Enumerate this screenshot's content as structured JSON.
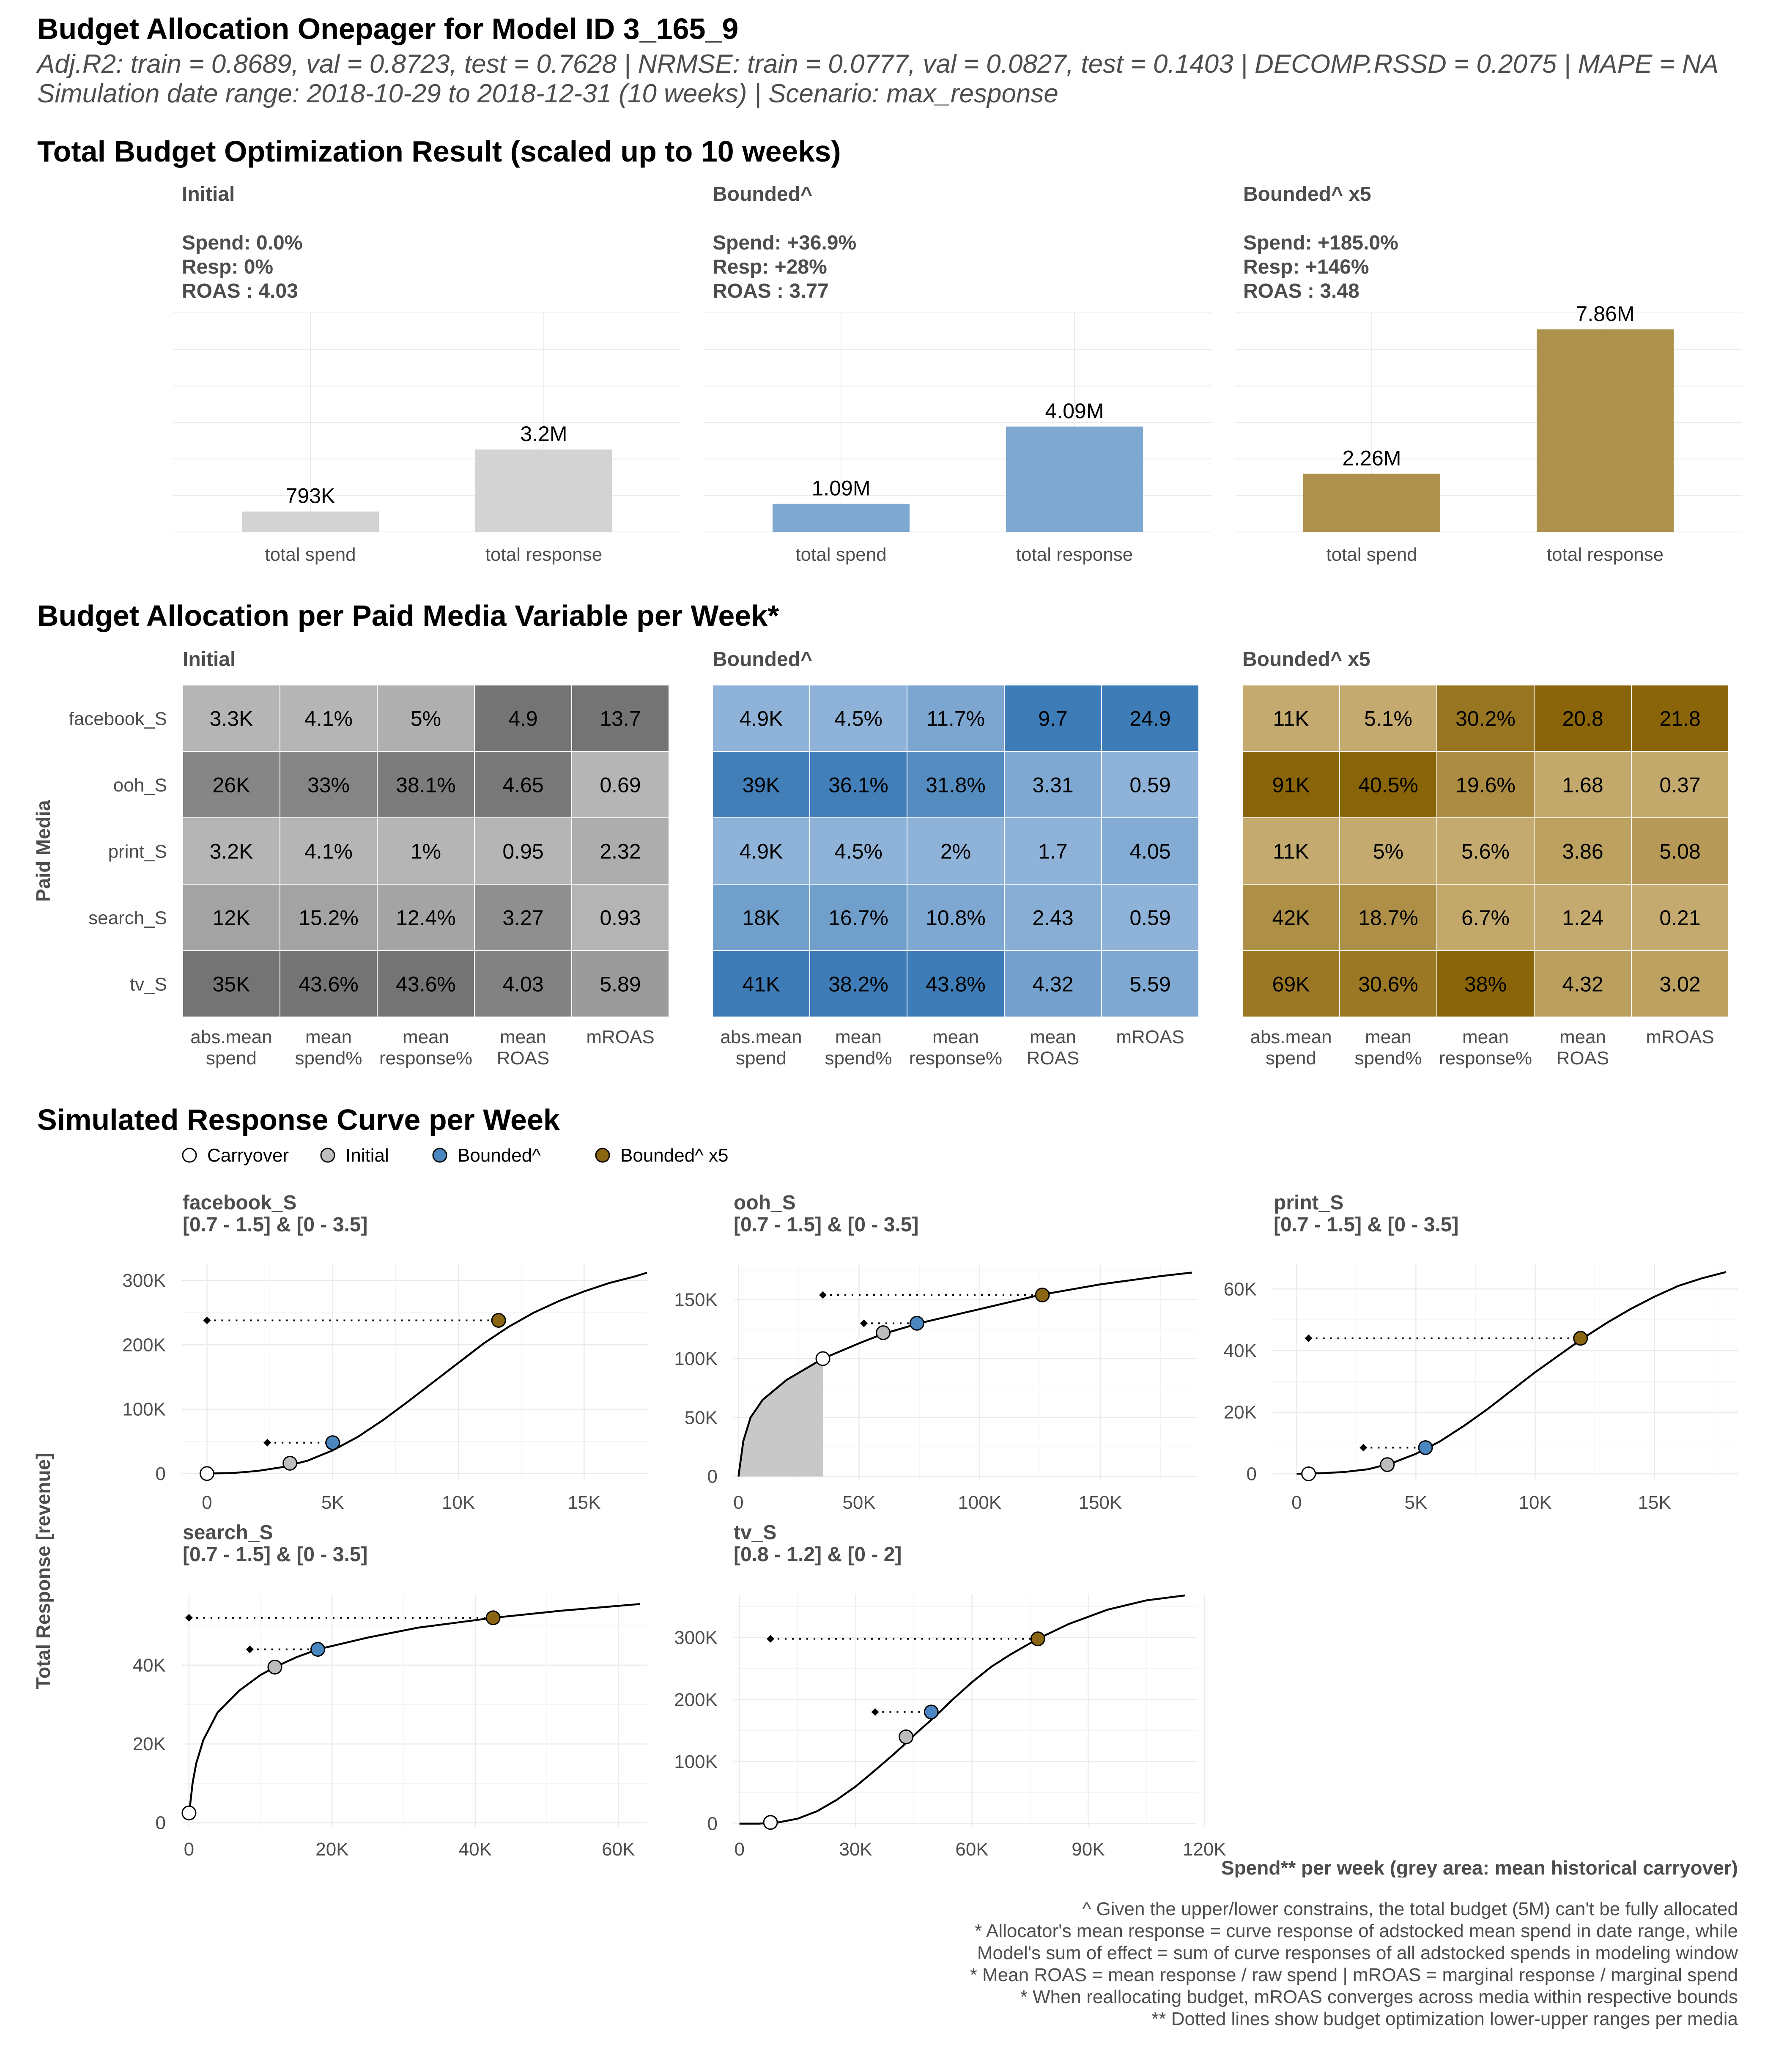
{
  "header": {
    "title": "Budget Allocation Onepager for Model ID 3_165_9",
    "metrics": "Adj.R2: train = 0.8689, val = 0.8723, test = 0.7628 | NRMSE: train = 0.0777, val = 0.0827, test = 0.1403 | DECOMP.RSSD = 0.2075 | MAPE = NA",
    "simulation": "Simulation date range: 2018-10-29 to 2018-12-31 (10 weeks) | Scenario: max_response"
  },
  "sections": {
    "total": "Total Budget Optimization Result (scaled up to 10 weeks)",
    "allocation": "Budget Allocation per Paid Media Variable per Week*",
    "curves": "Simulated Response Curve per Week"
  },
  "colors": {
    "initial": "#c9c9c9",
    "bounded": "#4a86bf",
    "bounded5": "#8a6512"
  },
  "chart_data": [
    {
      "type": "bar",
      "title": "Total Budget Optimization Result (scaled up to 10 weeks)",
      "categories": [
        "total spend",
        "total response"
      ],
      "panels": [
        {
          "name": "Initial",
          "stats": [
            "Spend: 0.0%",
            "Resp: 0%",
            "ROAS : 4.03"
          ],
          "values": [
            793000,
            3200000
          ],
          "labels": [
            "793K",
            "3.2M"
          ],
          "color": "#d3d3d3"
        },
        {
          "name": "Bounded^",
          "stats": [
            "Spend: +36.9%",
            "Resp: +28%",
            "ROAS : 3.77"
          ],
          "values": [
            1090000,
            4090000
          ],
          "labels": [
            "1.09M",
            "4.09M"
          ],
          "color": "#7ea8cf"
        },
        {
          "name": "Bounded^ x5",
          "stats": [
            "Spend: +185.0%",
            "Resp: +146%",
            "ROAS : 3.48"
          ],
          "values": [
            2260000,
            7860000
          ],
          "labels": [
            "2.26M",
            "7.86M"
          ],
          "color": "#ae914d"
        }
      ],
      "ylim": [
        0,
        8500000
      ]
    },
    {
      "type": "heatmap",
      "title": "Budget Allocation per Paid Media Variable per Week*",
      "ylabel": "Paid Media",
      "rows": [
        "facebook_S",
        "ooh_S",
        "print_S",
        "search_S",
        "tv_S"
      ],
      "columns": [
        "abs.mean\nspend",
        "mean\nspend%",
        "mean\nresponse%",
        "mean\nROAS",
        "mROAS"
      ],
      "panels": [
        {
          "name": "Initial",
          "values": [
            [
              "3.3K",
              "4.1%",
              "5%",
              "4.9",
              "13.7"
            ],
            [
              "26K",
              "33%",
              "38.1%",
              "4.65",
              "0.69"
            ],
            [
              "3.2K",
              "4.1%",
              "1%",
              "0.95",
              "2.32"
            ],
            [
              "12K",
              "15.2%",
              "12.4%",
              "3.27",
              "0.93"
            ],
            [
              "35K",
              "43.6%",
              "43.6%",
              "4.03",
              "5.89"
            ]
          ]
        },
        {
          "name": "Bounded^",
          "values": [
            [
              "4.9K",
              "4.5%",
              "11.7%",
              "9.7",
              "24.9"
            ],
            [
              "39K",
              "36.1%",
              "31.8%",
              "3.31",
              "0.59"
            ],
            [
              "4.9K",
              "4.5%",
              "2%",
              "1.7",
              "4.05"
            ],
            [
              "18K",
              "16.7%",
              "10.8%",
              "2.43",
              "0.59"
            ],
            [
              "41K",
              "38.2%",
              "43.8%",
              "4.32",
              "5.59"
            ]
          ]
        },
        {
          "name": "Bounded^ x5",
          "values": [
            [
              "11K",
              "5.1%",
              "30.2%",
              "20.8",
              "21.8"
            ],
            [
              "91K",
              "40.5%",
              "19.6%",
              "1.68",
              "0.37"
            ],
            [
              "11K",
              "5%",
              "5.6%",
              "3.86",
              "5.08"
            ],
            [
              "42K",
              "18.7%",
              "6.7%",
              "1.24",
              "0.21"
            ],
            [
              "69K",
              "30.6%",
              "38%",
              "4.32",
              "3.02"
            ]
          ]
        }
      ]
    },
    {
      "type": "line",
      "title": "Simulated Response Curve per Week",
      "legend": [
        "Carryover",
        "Initial",
        "Bounded^",
        "Bounded^ x5"
      ],
      "legend_placement": "top-left",
      "xlabel": "Spend** per week (grey area: mean historical carryover)",
      "ylabel": "Total Response [revenue]",
      "panels": [
        {
          "name": "facebook_S",
          "bounds": "[0.7 - 1.5] & [0 - 3.5]",
          "xlim": [
            -1000,
            17500
          ],
          "ylim": [
            -10000,
            325000
          ],
          "xticks": [
            0,
            5000,
            10000,
            15000
          ],
          "xtick_labels": [
            "0",
            "5K",
            "10K",
            "15K"
          ],
          "yticks": [
            0,
            100000,
            200000,
            300000
          ],
          "ytick_labels": [
            "0",
            "100K",
            "200K",
            "300K"
          ],
          "curve": [
            [
              0,
              0
            ],
            [
              1000,
              800
            ],
            [
              2000,
              4000
            ],
            [
              3000,
              10000
            ],
            [
              4000,
              20000
            ],
            [
              5000,
              36000
            ],
            [
              6000,
              57000
            ],
            [
              7000,
              83000
            ],
            [
              8000,
              112000
            ],
            [
              9000,
              142000
            ],
            [
              10000,
              172000
            ],
            [
              11000,
              202000
            ],
            [
              12000,
              228000
            ],
            [
              13000,
              250000
            ],
            [
              14000,
              268000
            ],
            [
              15000,
              283000
            ],
            [
              16000,
              296000
            ],
            [
              17000,
              306000
            ],
            [
              17500,
              312000
            ]
          ],
          "carryover": [
            0,
            0
          ],
          "initial": [
            3300,
            16000
          ],
          "bounded": [
            5000,
            48000
          ],
          "bounded5": [
            11600,
            238000
          ],
          "ranges": [
            {
              "y": 48000,
              "x": [
                2400,
                5000
              ]
            },
            {
              "y": 238000,
              "x": [
                0,
                11600
              ]
            }
          ],
          "shade_to": 0
        },
        {
          "name": "ooh_S",
          "bounds": "[0.7 - 1.5] & [0 - 3.5]",
          "xlim": [
            -2000,
            190000
          ],
          "ylim": [
            -3000,
            180000
          ],
          "xticks": [
            0,
            50000,
            100000,
            150000
          ],
          "xtick_labels": [
            "0",
            "50K",
            "100K",
            "150K"
          ],
          "yticks": [
            0,
            50000,
            100000,
            150000
          ],
          "ytick_labels": [
            "0",
            "50K",
            "100K",
            "150K"
          ],
          "curve": [
            [
              0,
              0
            ],
            [
              2000,
              30000
            ],
            [
              5000,
              50000
            ],
            [
              10000,
              65000
            ],
            [
              20000,
              82000
            ],
            [
              35000,
              100000
            ],
            [
              50000,
              113000
            ],
            [
              60000,
              121000
            ],
            [
              75000,
              130000
            ],
            [
              100000,
              142000
            ],
            [
              125000,
              154000
            ],
            [
              150000,
              163000
            ],
            [
              175000,
              170000
            ],
            [
              188000,
              173000
            ]
          ],
          "carryover": [
            35000,
            100000
          ],
          "initial": [
            60000,
            122000
          ],
          "bounded": [
            74000,
            130000
          ],
          "bounded5": [
            126000,
            154000
          ],
          "ranges": [
            {
              "y": 130000,
              "x": [
                52000,
                74000
              ]
            },
            {
              "y": 154000,
              "x": [
                35000,
                126000
              ]
            }
          ],
          "shade_to": 35000
        },
        {
          "name": "print_S",
          "bounds": "[0.7 - 1.5] & [0 - 3.5]",
          "xlim": [
            -1000,
            18500
          ],
          "ylim": [
            -2000,
            68000
          ],
          "xticks": [
            0,
            5000,
            10000,
            15000
          ],
          "xtick_labels": [
            "0",
            "5K",
            "10K",
            "15K"
          ],
          "yticks": [
            0,
            20000,
            40000,
            60000
          ],
          "ytick_labels": [
            "0",
            "20K",
            "40K",
            "60K"
          ],
          "curve": [
            [
              0,
              0
            ],
            [
              1000,
              200
            ],
            [
              2000,
              600
            ],
            [
              3000,
              1500
            ],
            [
              4000,
              3500
            ],
            [
              5000,
              6500
            ],
            [
              6000,
              10500
            ],
            [
              7000,
              15500
            ],
            [
              8000,
              21000
            ],
            [
              9000,
              27000
            ],
            [
              10000,
              33000
            ],
            [
              11000,
              38500
            ],
            [
              12000,
              44000
            ],
            [
              13000,
              49000
            ],
            [
              14000,
              53500
            ],
            [
              15000,
              57500
            ],
            [
              16000,
              61000
            ],
            [
              17000,
              63500
            ],
            [
              18000,
              65500
            ]
          ],
          "carryover": [
            500,
            0
          ],
          "initial": [
            3800,
            3000
          ],
          "bounded": [
            5400,
            8500
          ],
          "bounded5": [
            11900,
            44000
          ],
          "ranges": [
            {
              "y": 8500,
              "x": [
                2800,
                5400
              ]
            },
            {
              "y": 44000,
              "x": [
                500,
                11900
              ]
            }
          ],
          "shade_to": 500
        },
        {
          "name": "search_S",
          "bounds": "[0.7 - 1.5] & [0 - 3.5]",
          "xlim": [
            -1000,
            64000
          ],
          "ylim": [
            -1000,
            58000
          ],
          "xticks": [
            0,
            20000,
            40000,
            60000
          ],
          "xtick_labels": [
            "0",
            "20K",
            "40K",
            "60K"
          ],
          "yticks": [
            0,
            20000,
            40000
          ],
          "ytick_labels": [
            "0",
            "20K",
            "40K"
          ],
          "curve": [
            [
              0,
              2000
            ],
            [
              500,
              10000
            ],
            [
              1000,
              15000
            ],
            [
              2000,
              21000
            ],
            [
              4000,
              28000
            ],
            [
              7000,
              33500
            ],
            [
              10000,
              37500
            ],
            [
              12000,
              39500
            ],
            [
              15000,
              42000
            ],
            [
              18000,
              44000
            ],
            [
              25000,
              47000
            ],
            [
              32000,
              49500
            ],
            [
              42500,
              52000
            ],
            [
              52000,
              53800
            ],
            [
              63000,
              55500
            ]
          ],
          "carryover": [
            0,
            2500
          ],
          "initial": [
            12000,
            39500
          ],
          "bounded": [
            18000,
            44000
          ],
          "bounded5": [
            42500,
            52000
          ],
          "ranges": [
            {
              "y": 44000,
              "x": [
                8500,
                18000
              ]
            },
            {
              "y": 52000,
              "x": [
                0,
                42500
              ]
            }
          ],
          "shade_to": 0
        },
        {
          "name": "tv_S",
          "bounds": "[0.8 - 1.2] & [0 - 2]",
          "xlim": [
            -1500,
            118000
          ],
          "ylim": [
            -5000,
            370000
          ],
          "xticks": [
            0,
            30000,
            60000,
            90000,
            120000
          ],
          "xtick_labels": [
            "0",
            "30K",
            "60K",
            "90K",
            "120K"
          ],
          "yticks": [
            0,
            100000,
            200000,
            300000
          ],
          "ytick_labels": [
            "0",
            "100K",
            "200K",
            "300K"
          ],
          "curve": [
            [
              0,
              0
            ],
            [
              5000,
              0
            ],
            [
              10000,
              2000
            ],
            [
              15000,
              8000
            ],
            [
              20000,
              20000
            ],
            [
              25000,
              38000
            ],
            [
              30000,
              60000
            ],
            [
              35000,
              86000
            ],
            [
              40000,
              113000
            ],
            [
              43000,
              130000
            ],
            [
              46000,
              148000
            ],
            [
              50000,
              170000
            ],
            [
              55000,
              200000
            ],
            [
              60000,
              228000
            ],
            [
              65000,
              253000
            ],
            [
              70000,
              273000
            ],
            [
              77000,
              298000
            ],
            [
              85000,
              322000
            ],
            [
              95000,
              345000
            ],
            [
              105000,
              360000
            ],
            [
              115000,
              368000
            ]
          ],
          "carryover": [
            8000,
            2000
          ],
          "initial": [
            43000,
            140000
          ],
          "bounded": [
            49500,
            180000
          ],
          "bounded5": [
            77000,
            298000
          ],
          "ranges": [
            {
              "y": 180000,
              "x": [
                35000,
                49500
              ]
            },
            {
              "y": 298000,
              "x": [
                8000,
                77000
              ]
            }
          ],
          "shade_to": 8000
        }
      ]
    }
  ],
  "footnotes": [
    "^ Given the upper/lower constrains, the total budget (5M) can't be fully allocated",
    "* Allocator's mean response = curve response of adstocked mean spend in date range, while",
    "Model's sum of effect = sum of curve responses of all adstocked spends in modeling window",
    "* Mean ROAS = mean response / raw spend | mROAS = marginal response / marginal spend",
    "* When reallocating budget, mROAS converges across media within respective bounds",
    "** Dotted lines show budget optimization lower-upper ranges per media"
  ]
}
